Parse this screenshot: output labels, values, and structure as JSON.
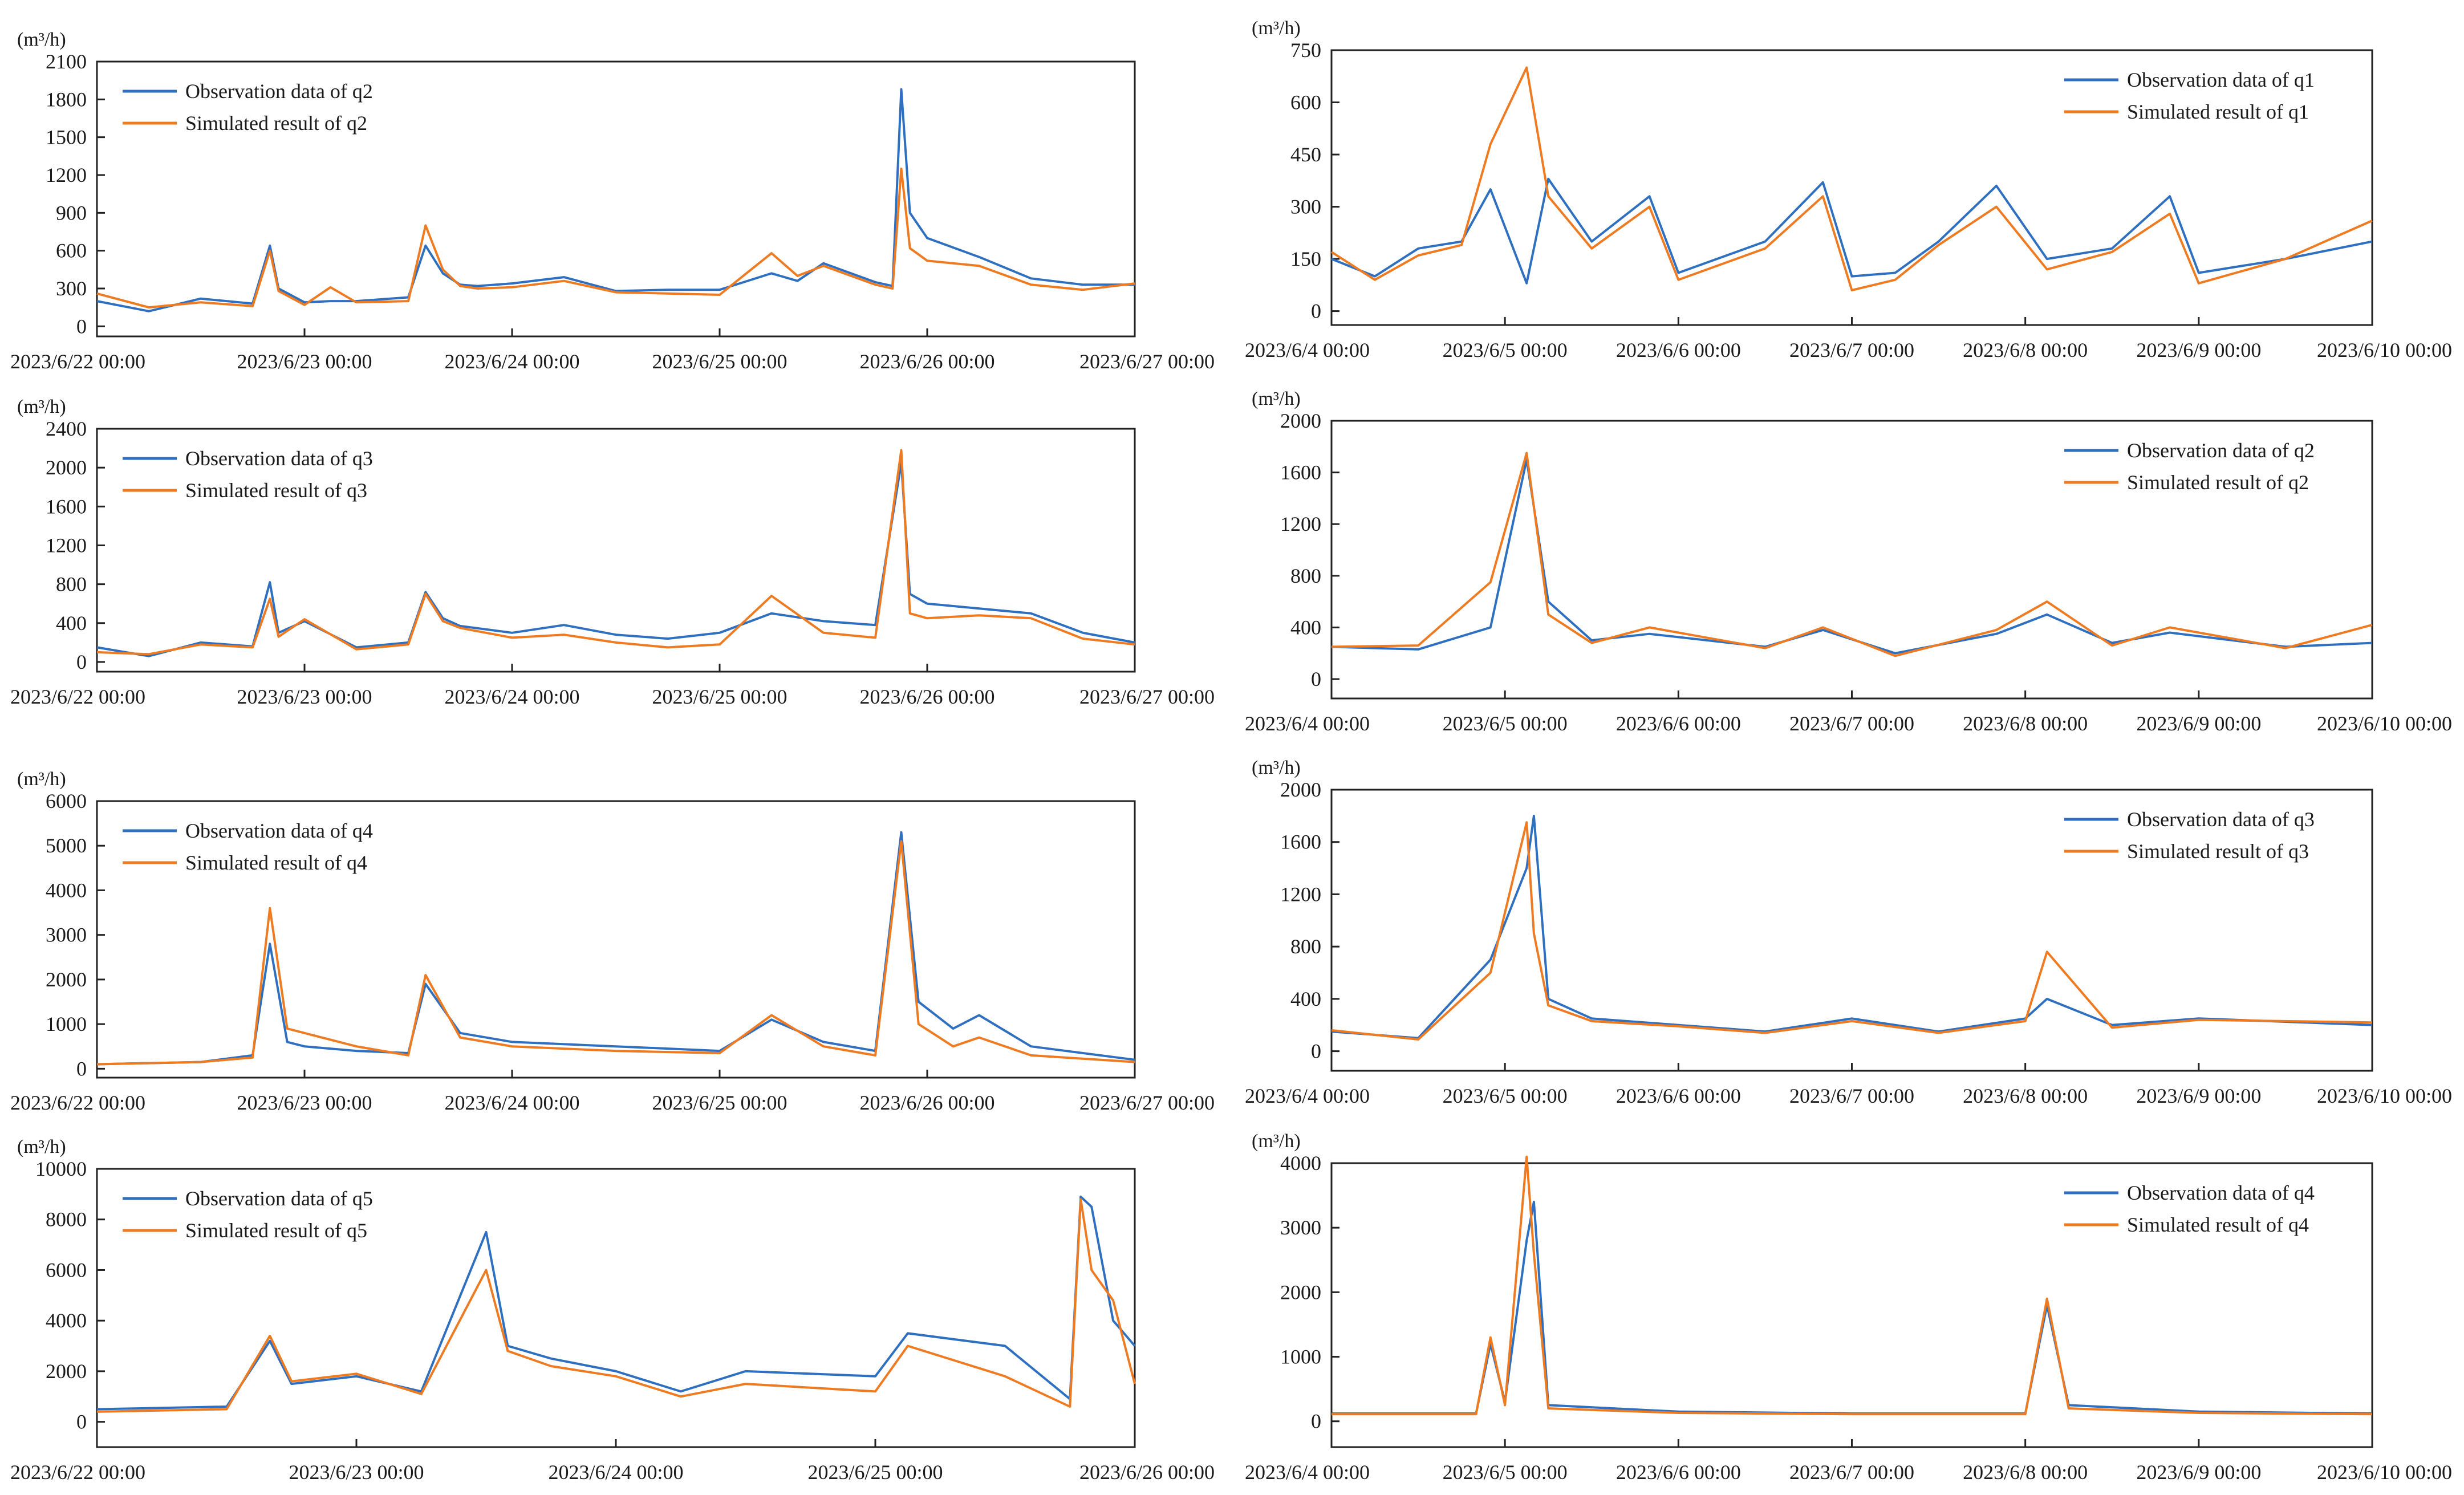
{
  "colors": {
    "observation": "#2f6fc0",
    "simulated": "#ee7b22",
    "axis": "#222222"
  },
  "chart_data": [
    {
      "id": "L1",
      "type": "line",
      "unit": "(m³/h)",
      "y_ticks": [
        0,
        300,
        600,
        900,
        1200,
        1500,
        1800,
        2100
      ],
      "ylim": [
        -80,
        2100
      ],
      "x_tick_labels": [
        "2023/6/22 00:00",
        "2023/6/23 00:00",
        "2023/6/24 00:00",
        "2023/6/25 00:00",
        "2023/6/26 00:00",
        "2023/6/27 00:00"
      ],
      "legend_position": "top-left",
      "x": [
        "2023/6/22 00:00",
        "2023/6/22 06:00",
        "2023/6/22 12:00",
        "2023/6/22 18:00",
        "2023/6/22 20:00",
        "2023/6/22 21:00",
        "2023/6/23 00:00",
        "2023/6/23 03:00",
        "2023/6/23 06:00",
        "2023/6/23 12:00",
        "2023/6/23 14:00",
        "2023/6/23 16:00",
        "2023/6/23 18:00",
        "2023/6/23 20:00",
        "2023/6/24 00:00",
        "2023/6/24 06:00",
        "2023/6/24 12:00",
        "2023/6/24 18:00",
        "2023/6/25 00:00",
        "2023/6/25 06:00",
        "2023/6/25 09:00",
        "2023/6/25 12:00",
        "2023/6/25 18:00",
        "2023/6/25 20:00",
        "2023/6/25 21:00",
        "2023/6/25 22:00",
        "2023/6/26 00:00",
        "2023/6/26 06:00",
        "2023/6/26 12:00",
        "2023/6/26 18:00",
        "2023/6/27 00:00"
      ],
      "series": [
        {
          "name": "Observation data of q2",
          "values": [
            200,
            120,
            220,
            180,
            640,
            300,
            190,
            200,
            200,
            230,
            640,
            420,
            330,
            320,
            340,
            390,
            280,
            290,
            290,
            420,
            360,
            500,
            350,
            320,
            1880,
            900,
            700,
            550,
            380,
            330,
            330
          ]
        },
        {
          "name": "Simulated result of q2",
          "values": [
            260,
            150,
            190,
            160,
            600,
            280,
            170,
            310,
            190,
            200,
            800,
            450,
            320,
            300,
            310,
            360,
            270,
            260,
            250,
            580,
            400,
            480,
            330,
            300,
            1250,
            620,
            520,
            480,
            330,
            290,
            340
          ]
        }
      ]
    },
    {
      "id": "L2",
      "type": "line",
      "unit": "(m³/h)",
      "y_ticks": [
        0,
        400,
        800,
        1200,
        1600,
        2000,
        2400
      ],
      "ylim": [
        -100,
        2400
      ],
      "x_tick_labels": [
        "2023/6/22 00:00",
        "2023/6/23 00:00",
        "2023/6/24 00:00",
        "2023/6/25 00:00",
        "2023/6/26 00:00",
        "2023/6/27 00:00"
      ],
      "legend_position": "top-left",
      "x": [
        "2023/6/22 00:00",
        "2023/6/22 06:00",
        "2023/6/22 12:00",
        "2023/6/22 18:00",
        "2023/6/22 20:00",
        "2023/6/22 21:00",
        "2023/6/23 00:00",
        "2023/6/23 06:00",
        "2023/6/23 12:00",
        "2023/6/23 14:00",
        "2023/6/23 16:00",
        "2023/6/23 18:00",
        "2023/6/24 00:00",
        "2023/6/24 06:00",
        "2023/6/24 12:00",
        "2023/6/24 18:00",
        "2023/6/25 00:00",
        "2023/6/25 06:00",
        "2023/6/25 12:00",
        "2023/6/25 18:00",
        "2023/6/25 21:00",
        "2023/6/25 22:00",
        "2023/6/26 00:00",
        "2023/6/26 06:00",
        "2023/6/26 12:00",
        "2023/6/26 18:00",
        "2023/6/27 00:00"
      ],
      "series": [
        {
          "name": "Observation data of q3",
          "values": [
            150,
            60,
            200,
            160,
            820,
            300,
            420,
            150,
            200,
            720,
            450,
            370,
            300,
            380,
            280,
            240,
            300,
            500,
            420,
            380,
            2050,
            700,
            600,
            550,
            500,
            300,
            200
          ]
        },
        {
          "name": "Simulated result of q3",
          "values": [
            100,
            80,
            180,
            150,
            650,
            260,
            440,
            130,
            180,
            700,
            420,
            350,
            250,
            280,
            200,
            150,
            180,
            680,
            300,
            250,
            2180,
            500,
            450,
            480,
            450,
            240,
            180
          ]
        }
      ]
    },
    {
      "id": "L3",
      "type": "line",
      "unit": "(m³/h)",
      "y_ticks": [
        0,
        1000,
        2000,
        3000,
        4000,
        5000,
        6000
      ],
      "ylim": [
        -200,
        6000
      ],
      "x_tick_labels": [
        "2023/6/22 00:00",
        "2023/6/23 00:00",
        "2023/6/24 00:00",
        "2023/6/25 00:00",
        "2023/6/26 00:00",
        "2023/6/27 00:00"
      ],
      "legend_position": "top-left",
      "x": [
        "2023/6/22 00:00",
        "2023/6/22 12:00",
        "2023/6/22 18:00",
        "2023/6/22 20:00",
        "2023/6/22 22:00",
        "2023/6/23 00:00",
        "2023/6/23 06:00",
        "2023/6/23 12:00",
        "2023/6/23 14:00",
        "2023/6/23 18:00",
        "2023/6/24 00:00",
        "2023/6/24 12:00",
        "2023/6/25 00:00",
        "2023/6/25 06:00",
        "2023/6/25 12:00",
        "2023/6/25 18:00",
        "2023/6/25 21:00",
        "2023/6/25 23:00",
        "2023/6/26 03:00",
        "2023/6/26 06:00",
        "2023/6/26 12:00",
        "2023/6/27 00:00"
      ],
      "series": [
        {
          "name": "Observation data of q4",
          "values": [
            100,
            150,
            300,
            2800,
            600,
            500,
            400,
            350,
            1900,
            800,
            600,
            500,
            400,
            1100,
            600,
            400,
            5300,
            1500,
            900,
            1200,
            500,
            200
          ]
        },
        {
          "name": "Simulated result  of q4",
          "values": [
            100,
            150,
            250,
            3600,
            900,
            800,
            500,
            300,
            2100,
            700,
            500,
            400,
            350,
            1200,
            500,
            300,
            5100,
            1000,
            500,
            700,
            300,
            150
          ]
        }
      ]
    },
    {
      "id": "L4",
      "type": "line",
      "unit": "(m³/h)",
      "y_ticks": [
        0,
        2000,
        4000,
        6000,
        8000,
        10000
      ],
      "ylim": [
        -1000,
        10000
      ],
      "x_tick_labels": [
        "2023/6/22 00:00",
        "2023/6/23 00:00",
        "2023/6/24 00:00",
        "2023/6/25 00:00",
        "2023/6/26 00:00"
      ],
      "legend_position": "top-left",
      "x": [
        "2023/6/22 00:00",
        "2023/6/22 12:00",
        "2023/6/22 16:00",
        "2023/6/22 18:00",
        "2023/6/23 00:00",
        "2023/6/23 06:00",
        "2023/6/23 12:00",
        "2023/6/23 14:00",
        "2023/6/23 18:00",
        "2023/6/24 00:00",
        "2023/6/24 06:00",
        "2023/6/24 12:00",
        "2023/6/25 00:00",
        "2023/6/25 03:00",
        "2023/6/25 12:00",
        "2023/6/25 18:00",
        "2023/6/25 19:00",
        "2023/6/25 20:00",
        "2023/6/25 22:00",
        "2023/6/26 00:00"
      ],
      "series": [
        {
          "name": "Observation data of q5",
          "values": [
            500,
            600,
            3200,
            1500,
            1800,
            1200,
            7500,
            3000,
            2500,
            2000,
            1200,
            2000,
            1800,
            3500,
            3000,
            900,
            8900,
            8500,
            4000,
            3000
          ]
        },
        {
          "name": "Simulated result of q5",
          "values": [
            400,
            500,
            3400,
            1600,
            1900,
            1100,
            6000,
            2800,
            2200,
            1800,
            1000,
            1500,
            1200,
            3000,
            1800,
            600,
            8800,
            6000,
            4800,
            1500
          ]
        }
      ]
    },
    {
      "id": "R1",
      "type": "line",
      "unit": "(m³/h)",
      "y_ticks": [
        0,
        150,
        300,
        450,
        600,
        750
      ],
      "ylim": [
        -40,
        750
      ],
      "x_tick_labels": [
        "2023/6/4 00:00",
        "2023/6/5 00:00",
        "2023/6/6 00:00",
        "2023/6/7 00:00",
        "2023/6/8 00:00",
        "2023/6/9 00:00",
        "2023/6/10 00:00"
      ],
      "legend_position": "top-right",
      "x": [
        "2023/6/4 00:00",
        "2023/6/4 06:00",
        "2023/6/4 12:00",
        "2023/6/4 18:00",
        "2023/6/4 22:00",
        "2023/6/5 03:00",
        "2023/6/5 06:00",
        "2023/6/5 12:00",
        "2023/6/5 20:00",
        "2023/6/6 00:00",
        "2023/6/6 12:00",
        "2023/6/6 20:00",
        "2023/6/7 00:00",
        "2023/6/7 06:00",
        "2023/6/7 12:00",
        "2023/6/7 20:00",
        "2023/6/8 03:00",
        "2023/6/8 12:00",
        "2023/6/8 20:00",
        "2023/6/9 00:00",
        "2023/6/9 12:00",
        "2023/6/10 00:00"
      ],
      "series": [
        {
          "name": "Observation data of q1",
          "values": [
            150,
            100,
            180,
            200,
            350,
            80,
            380,
            200,
            330,
            110,
            200,
            370,
            100,
            110,
            200,
            360,
            150,
            180,
            330,
            110,
            150,
            200
          ]
        },
        {
          "name": "Simulated result of q1",
          "values": [
            170,
            90,
            160,
            190,
            480,
            700,
            330,
            180,
            300,
            90,
            180,
            330,
            60,
            90,
            190,
            300,
            120,
            170,
            280,
            80,
            150,
            260
          ]
        }
      ]
    },
    {
      "id": "R2",
      "type": "line",
      "unit": "(m³/h)",
      "y_ticks": [
        0,
        400,
        800,
        1200,
        1600,
        2000
      ],
      "ylim": [
        -150,
        2000
      ],
      "x_tick_labels": [
        "2023/6/4 00:00",
        "2023/6/5 00:00",
        "2023/6/6 00:00",
        "2023/6/7 00:00",
        "2023/6/8 00:00",
        "2023/6/9 00:00",
        "2023/6/10 00:00"
      ],
      "legend_position": "top-right",
      "x": [
        "2023/6/4 00:00",
        "2023/6/4 12:00",
        "2023/6/4 22:00",
        "2023/6/5 03:00",
        "2023/6/5 06:00",
        "2023/6/5 12:00",
        "2023/6/5 20:00",
        "2023/6/6 12:00",
        "2023/6/6 20:00",
        "2023/6/7 06:00",
        "2023/6/7 20:00",
        "2023/6/8 03:00",
        "2023/6/8 12:00",
        "2023/6/8 20:00",
        "2023/6/9 12:00",
        "2023/6/10 00:00"
      ],
      "series": [
        {
          "name": "Observation data of q2",
          "values": [
            250,
            230,
            400,
            1700,
            600,
            300,
            350,
            250,
            380,
            200,
            350,
            500,
            280,
            360,
            250,
            280
          ]
        },
        {
          "name": "Simulated result of q2",
          "values": [
            250,
            260,
            750,
            1750,
            500,
            280,
            400,
            240,
            400,
            180,
            380,
            600,
            260,
            400,
            240,
            420
          ]
        }
      ]
    },
    {
      "id": "R3",
      "type": "line",
      "unit": "(m³/h)",
      "y_ticks": [
        0,
        400,
        800,
        1200,
        1600,
        2000
      ],
      "ylim": [
        -150,
        2000
      ],
      "x_tick_labels": [
        "2023/6/4 00:00",
        "2023/6/5 00:00",
        "2023/6/6 00:00",
        "2023/6/7 00:00",
        "2023/6/8 00:00",
        "2023/6/9 00:00",
        "2023/6/10 00:00"
      ],
      "legend_position": "top-right",
      "x": [
        "2023/6/4 00:00",
        "2023/6/4 12:00",
        "2023/6/4 22:00",
        "2023/6/5 03:00",
        "2023/6/5 04:00",
        "2023/6/5 06:00",
        "2023/6/5 12:00",
        "2023/6/6 00:00",
        "2023/6/6 12:00",
        "2023/6/7 00:00",
        "2023/6/7 12:00",
        "2023/6/8 00:00",
        "2023/6/8 03:00",
        "2023/6/8 12:00",
        "2023/6/9 00:00",
        "2023/6/10 00:00"
      ],
      "series": [
        {
          "name": "Observation data of q3",
          "values": [
            150,
            100,
            700,
            1400,
            1800,
            400,
            250,
            200,
            150,
            250,
            150,
            250,
            400,
            200,
            250,
            200
          ]
        },
        {
          "name": "Simulated result  of q3",
          "values": [
            160,
            90,
            600,
            1750,
            900,
            350,
            230,
            190,
            140,
            230,
            140,
            230,
            760,
            180,
            240,
            220
          ]
        }
      ]
    },
    {
      "id": "R4",
      "type": "line",
      "unit": "(m³/h)",
      "y_ticks": [
        0,
        1000,
        2000,
        3000,
        4000
      ],
      "ylim": [
        -400,
        4000
      ],
      "x_tick_labels": [
        "2023/6/4 00:00",
        "2023/6/5 00:00",
        "2023/6/6 00:00",
        "2023/6/7 00:00",
        "2023/6/8 00:00",
        "2023/6/9 00:00",
        "2023/6/10 00:00"
      ],
      "legend_position": "top-right",
      "x": [
        "2023/6/4 00:00",
        "2023/6/4 20:00",
        "2023/6/4 22:00",
        "2023/6/5 00:00",
        "2023/6/5 03:00",
        "2023/6/5 04:00",
        "2023/6/5 06:00",
        "2023/6/6 00:00",
        "2023/6/7 00:00",
        "2023/6/8 00:00",
        "2023/6/8 03:00",
        "2023/6/8 06:00",
        "2023/6/9 00:00",
        "2023/6/10 00:00"
      ],
      "series": [
        {
          "name": "Observation data of q4",
          "values": [
            120,
            120,
            1200,
            300,
            2800,
            3400,
            250,
            150,
            120,
            120,
            1800,
            250,
            150,
            120
          ]
        },
        {
          "name": "Simulated result of q4",
          "values": [
            110,
            110,
            1300,
            250,
            4100,
            2600,
            200,
            130,
            110,
            110,
            1900,
            200,
            130,
            110
          ]
        }
      ]
    }
  ]
}
